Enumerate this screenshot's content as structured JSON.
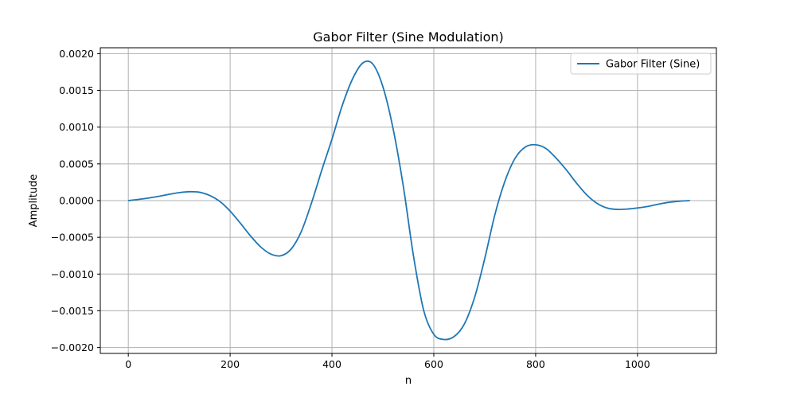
{
  "chart_data": {
    "type": "line",
    "title": "Gabor Filter (Sine Modulation)",
    "xlabel": "n",
    "ylabel": "Amplitude",
    "xlim": [
      -55,
      1155
    ],
    "ylim": [
      -0.00208,
      0.00208
    ],
    "xticks": [
      0,
      200,
      400,
      600,
      800,
      1000
    ],
    "xtick_labels": [
      "0",
      "200",
      "400",
      "600",
      "800",
      "1000"
    ],
    "yticks": [
      -0.002,
      -0.0015,
      -0.001,
      -0.0005,
      0.0,
      0.0005,
      0.001,
      0.0015,
      0.002
    ],
    "ytick_labels": [
      "−0.0020",
      "−0.0015",
      "−0.0010",
      "−0.0005",
      "0.0000",
      "0.0005",
      "0.0010",
      "0.0015",
      "0.0020"
    ],
    "grid": true,
    "legend_position": "upper right",
    "series": [
      {
        "name": "Gabor Filter (Sine)",
        "color": "#1f77b4",
        "x": [
          0,
          20,
          40,
          60,
          80,
          100,
          120,
          140,
          160,
          180,
          200,
          220,
          240,
          260,
          280,
          300,
          320,
          340,
          360,
          380,
          400,
          420,
          440,
          460,
          480,
          500,
          520,
          540,
          560,
          580,
          600,
          620,
          640,
          660,
          680,
          700,
          720,
          740,
          760,
          780,
          800,
          820,
          840,
          860,
          880,
          900,
          920,
          940,
          960,
          980,
          1000,
          1020,
          1040,
          1060,
          1080,
          1103
        ],
        "y": [
          0.0,
          1.6e-05,
          3.5e-05,
          5.8e-05,
          8.5e-05,
          0.000108,
          0.000121,
          0.000113,
          7e-05,
          -1.3e-05,
          -0.000143,
          -0.000307,
          -0.00048,
          -0.000631,
          -0.000728,
          -0.00075,
          -0.000658,
          -0.000417,
          -2.8e-05,
          0.000415,
          0.000836,
          0.00129,
          0.00165,
          0.00187,
          0.00186,
          0.00155,
          0.00098,
          0.0002,
          -0.00075,
          -0.00149,
          -0.00182,
          -0.00189,
          -0.00185,
          -0.00168,
          -0.00132,
          -0.00079,
          -0.00019,
          0.00027,
          0.00058,
          0.00073,
          0.00076,
          0.00071,
          0.00058,
          0.00042,
          0.00024,
          8e-05,
          -3.5e-05,
          -0.0001,
          -0.00012,
          -0.000115,
          -0.0001,
          -8e-05,
          -5e-05,
          -2.5e-05,
          -1e-05,
          0.0
        ]
      }
    ]
  }
}
